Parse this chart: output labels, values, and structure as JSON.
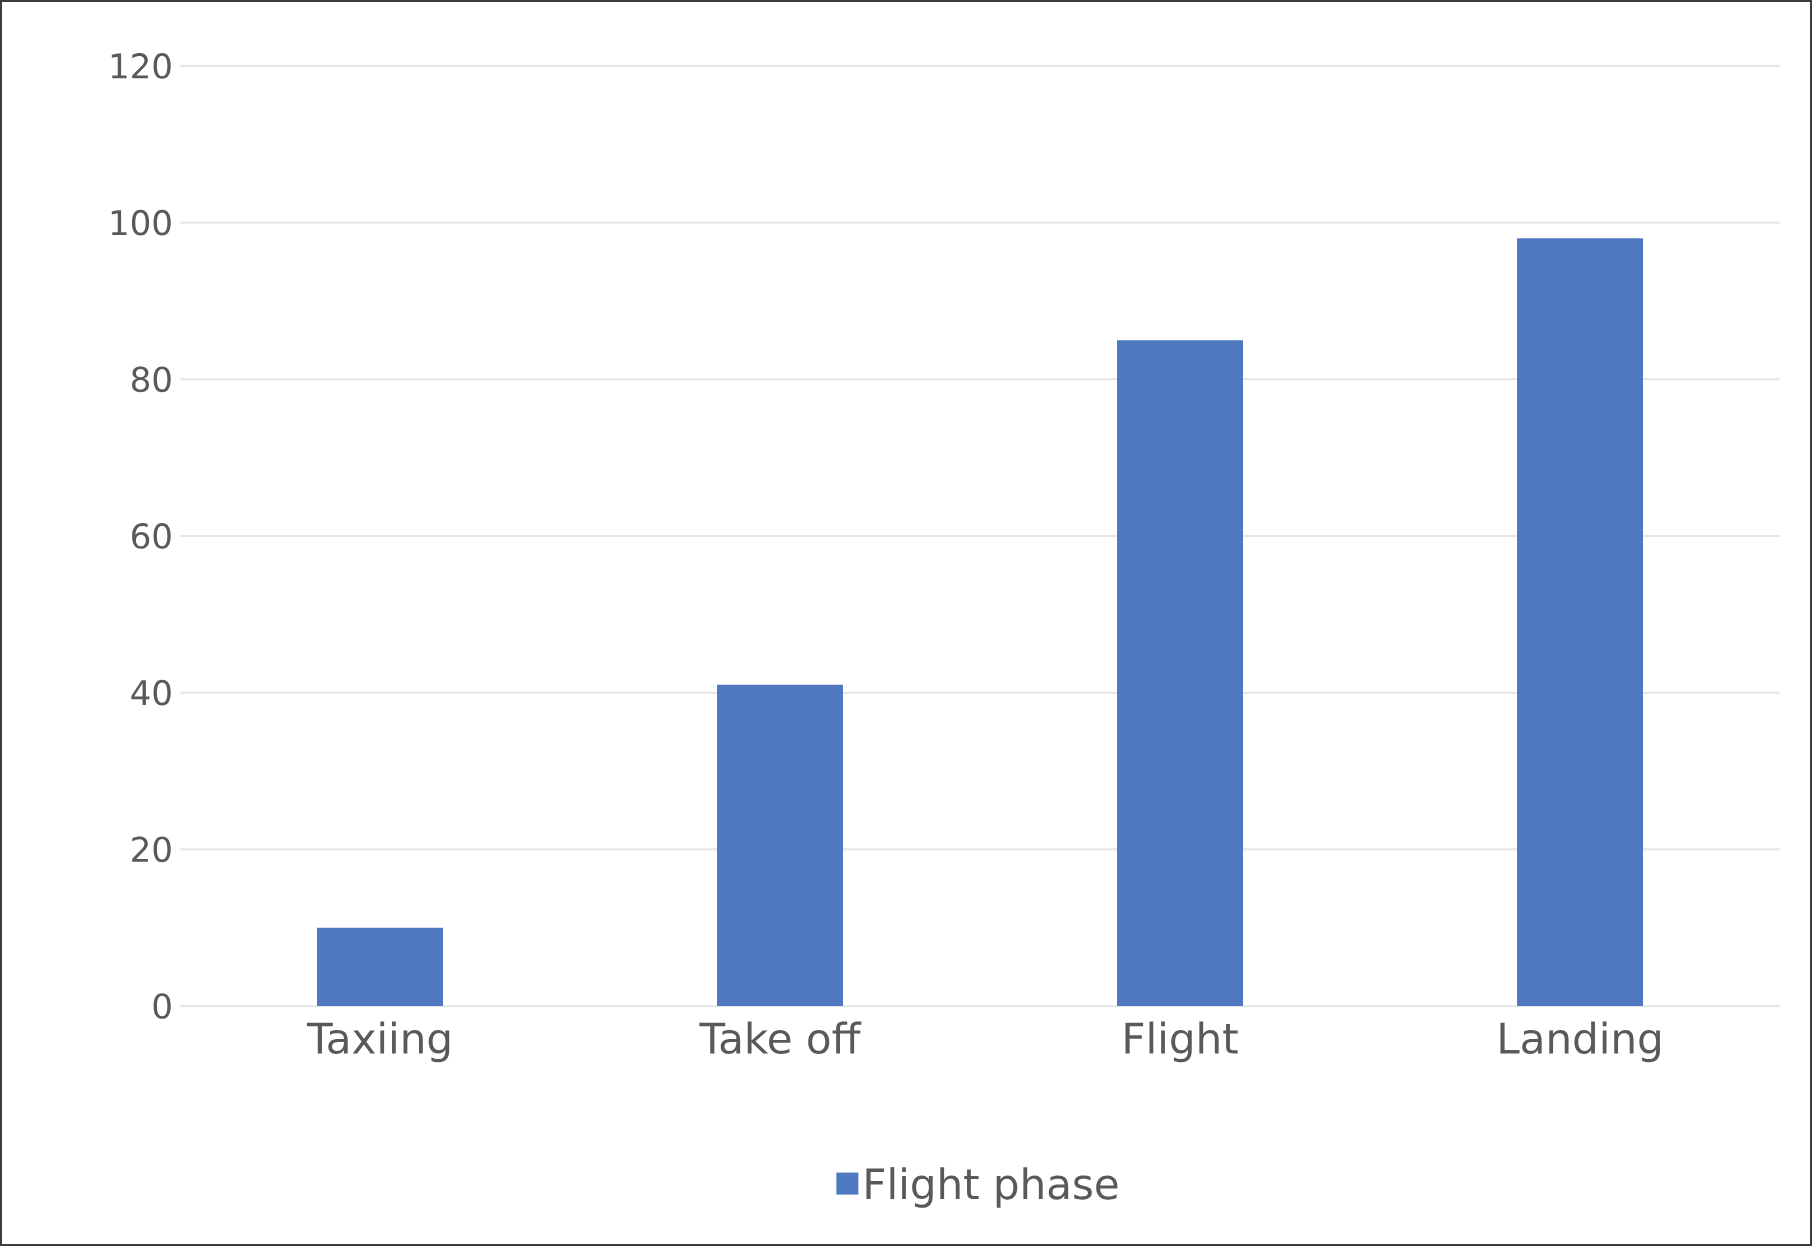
{
  "chart_data": {
    "type": "bar",
    "categories": [
      "Taxiing",
      "Take off",
      "Flight",
      "Landing"
    ],
    "series": [
      {
        "name": "Flight phase",
        "color": "#4e79c1",
        "values": [
          10,
          41,
          85,
          98
        ]
      }
    ],
    "ylim": [
      0,
      120
    ],
    "yticks": [
      0,
      20,
      40,
      60,
      80,
      100,
      120
    ],
    "grid": "y",
    "legend": "bottom"
  }
}
